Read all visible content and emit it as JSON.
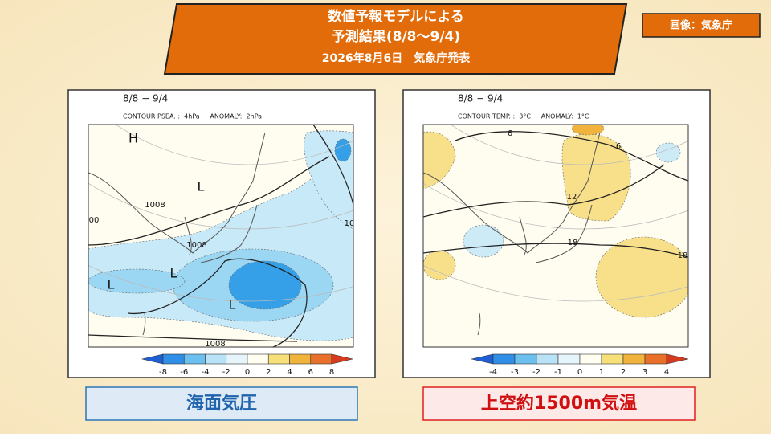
{
  "header": {
    "title_lines": [
      "数値予報モデルによる",
      "予測結果(8/8～9/4)",
      "2026年8月6日　気象庁発表"
    ]
  },
  "credit": "画像：気象庁",
  "maps": [
    {
      "period": "8/8 − 9/4",
      "contour_note": "CONTOUR PSEA. :  4hPa     ANOMALY:  2hPa",
      "labels": [
        "H",
        "L",
        "1008",
        "00",
        "1008",
        "L",
        "L",
        "L",
        "1008",
        "10"
      ],
      "colorbar": {
        "ticks": [
          -8,
          -6,
          -4,
          -2,
          0,
          2,
          4,
          6,
          8
        ],
        "colors": [
          "#1f5fd6",
          "#2f8fe6",
          "#6cc0f0",
          "#b8e2f6",
          "#e6f5fb",
          "#fffef0",
          "#f7e079",
          "#f0b43c",
          "#e8702a",
          "#d83a1e"
        ]
      },
      "caption": "海面気圧"
    },
    {
      "period": "8/8 − 9/4",
      "contour_note": "CONTOUR TEMP. :  3°C     ANOMALY:  1°C",
      "labels": [
        "6",
        "6",
        "12",
        "18",
        "18"
      ],
      "colorbar": {
        "ticks": [
          -4,
          -3,
          -2,
          -1,
          0,
          1,
          2,
          3,
          4
        ],
        "colors": [
          "#1f5fd6",
          "#2f8fe6",
          "#6cc0f0",
          "#b8e2f6",
          "#e6f5fb",
          "#fffef0",
          "#f7e079",
          "#f0b43c",
          "#e8702a",
          "#d83a1e"
        ]
      },
      "caption": "上空約1500m気温"
    }
  ]
}
